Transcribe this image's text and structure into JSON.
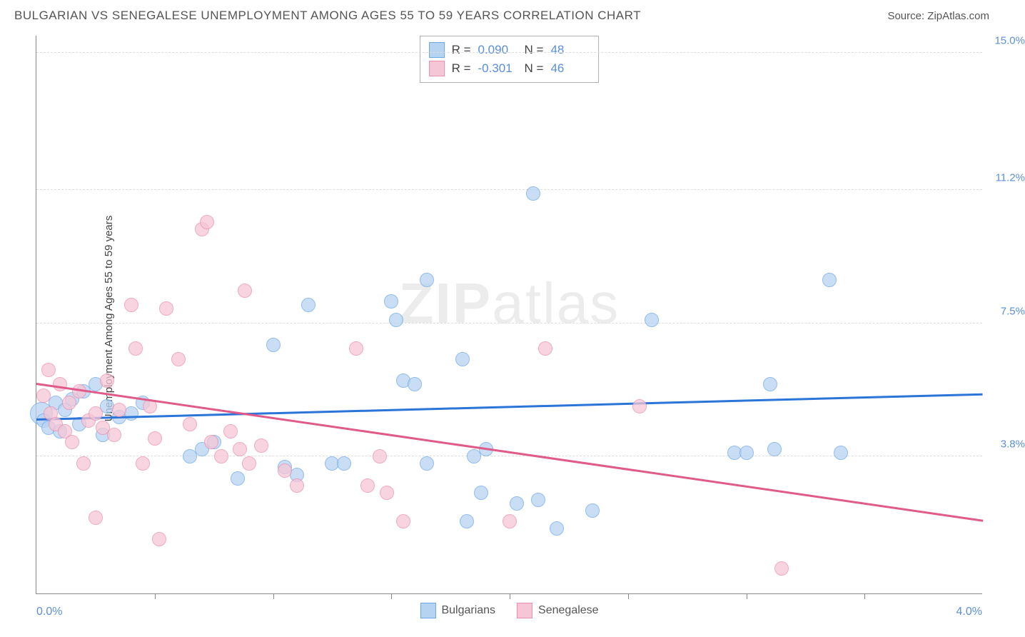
{
  "title": "BULGARIAN VS SENEGALESE UNEMPLOYMENT AMONG AGES 55 TO 59 YEARS CORRELATION CHART",
  "source": "Source: ZipAtlas.com",
  "watermark_a": "ZIP",
  "watermark_b": "atlas",
  "y_axis": {
    "label": "Unemployment Among Ages 55 to 59 years",
    "min": 0.0,
    "max": 15.5,
    "ticks": [
      {
        "value": 3.8,
        "label": "3.8%"
      },
      {
        "value": 7.5,
        "label": "7.5%"
      },
      {
        "value": 11.2,
        "label": "11.2%"
      },
      {
        "value": 15.0,
        "label": "15.0%"
      }
    ]
  },
  "x_axis": {
    "min": 0.0,
    "max": 4.0,
    "left_label": "0.0%",
    "right_label": "4.0%",
    "tick_positions": [
      0.5,
      1.0,
      1.5,
      2.0,
      2.5,
      3.0,
      3.5
    ]
  },
  "series": [
    {
      "name": "Bulgarians",
      "color_fill": "#b7d3f2",
      "color_stroke": "#6ea8e8",
      "trend_color": "#2b74d8",
      "r_label": "R =",
      "r_value": "0.090",
      "n_label": "N =",
      "n_value": "48",
      "trend": {
        "x1": 0.0,
        "y1": 4.8,
        "x2": 4.0,
        "y2": 5.5
      },
      "marker_radius": 10,
      "points": [
        {
          "x": 0.02,
          "y": 5.0,
          "r": 16
        },
        {
          "x": 0.03,
          "y": 4.8
        },
        {
          "x": 0.05,
          "y": 4.6
        },
        {
          "x": 0.08,
          "y": 5.3
        },
        {
          "x": 0.1,
          "y": 4.5
        },
        {
          "x": 0.12,
          "y": 5.1
        },
        {
          "x": 0.15,
          "y": 5.4
        },
        {
          "x": 0.18,
          "y": 4.7
        },
        {
          "x": 0.2,
          "y": 5.6
        },
        {
          "x": 0.25,
          "y": 5.8
        },
        {
          "x": 0.28,
          "y": 4.4
        },
        {
          "x": 0.3,
          "y": 5.2
        },
        {
          "x": 0.65,
          "y": 3.8
        },
        {
          "x": 0.7,
          "y": 4.0
        },
        {
          "x": 0.75,
          "y": 4.2
        },
        {
          "x": 0.85,
          "y": 3.2
        },
        {
          "x": 1.0,
          "y": 6.9
        },
        {
          "x": 1.05,
          "y": 3.5
        },
        {
          "x": 1.1,
          "y": 3.3
        },
        {
          "x": 1.15,
          "y": 8.0
        },
        {
          "x": 1.25,
          "y": 3.6
        },
        {
          "x": 1.3,
          "y": 3.6
        },
        {
          "x": 1.5,
          "y": 8.1
        },
        {
          "x": 1.55,
          "y": 5.9
        },
        {
          "x": 1.52,
          "y": 7.6
        },
        {
          "x": 1.6,
          "y": 5.8
        },
        {
          "x": 1.65,
          "y": 3.6
        },
        {
          "x": 1.8,
          "y": 6.5
        },
        {
          "x": 1.82,
          "y": 2.0
        },
        {
          "x": 1.88,
          "y": 2.8
        },
        {
          "x": 1.85,
          "y": 3.8
        },
        {
          "x": 1.9,
          "y": 4.0
        },
        {
          "x": 2.03,
          "y": 2.5
        },
        {
          "x": 2.1,
          "y": 11.1
        },
        {
          "x": 2.12,
          "y": 2.6
        },
        {
          "x": 2.2,
          "y": 1.8
        },
        {
          "x": 2.35,
          "y": 2.3
        },
        {
          "x": 2.6,
          "y": 7.6
        },
        {
          "x": 2.95,
          "y": 3.9
        },
        {
          "x": 3.0,
          "y": 3.9
        },
        {
          "x": 3.1,
          "y": 5.8
        },
        {
          "x": 3.12,
          "y": 4.0
        },
        {
          "x": 3.35,
          "y": 8.7
        },
        {
          "x": 3.4,
          "y": 3.9
        },
        {
          "x": 1.65,
          "y": 8.7
        },
        {
          "x": 0.35,
          "y": 4.9
        },
        {
          "x": 0.4,
          "y": 5.0
        },
        {
          "x": 0.45,
          "y": 5.3
        }
      ]
    },
    {
      "name": "Senegalese",
      "color_fill": "#f5c6d6",
      "color_stroke": "#eb8fb0",
      "trend_color": "#e05a8a",
      "r_label": "R =",
      "r_value": "-0.301",
      "n_label": "N =",
      "n_value": "46",
      "trend": {
        "x1": 0.0,
        "y1": 5.8,
        "x2": 4.0,
        "y2": 2.0
      },
      "marker_radius": 10,
      "points": [
        {
          "x": 0.03,
          "y": 5.5
        },
        {
          "x": 0.05,
          "y": 6.2
        },
        {
          "x": 0.06,
          "y": 5.0
        },
        {
          "x": 0.08,
          "y": 4.7
        },
        {
          "x": 0.1,
          "y": 5.8
        },
        {
          "x": 0.12,
          "y": 4.5
        },
        {
          "x": 0.14,
          "y": 5.3
        },
        {
          "x": 0.15,
          "y": 4.2
        },
        {
          "x": 0.18,
          "y": 5.6
        },
        {
          "x": 0.2,
          "y": 3.6
        },
        {
          "x": 0.22,
          "y": 4.8
        },
        {
          "x": 0.25,
          "y": 5.0
        },
        {
          "x": 0.28,
          "y": 4.6
        },
        {
          "x": 0.3,
          "y": 5.9
        },
        {
          "x": 0.33,
          "y": 4.4
        },
        {
          "x": 0.35,
          "y": 5.1
        },
        {
          "x": 0.25,
          "y": 2.1
        },
        {
          "x": 0.4,
          "y": 8.0
        },
        {
          "x": 0.42,
          "y": 6.8
        },
        {
          "x": 0.45,
          "y": 3.6
        },
        {
          "x": 0.48,
          "y": 5.2
        },
        {
          "x": 0.5,
          "y": 4.3
        },
        {
          "x": 0.52,
          "y": 1.5
        },
        {
          "x": 0.55,
          "y": 7.9
        },
        {
          "x": 0.6,
          "y": 6.5
        },
        {
          "x": 0.65,
          "y": 4.7
        },
        {
          "x": 0.7,
          "y": 10.1
        },
        {
          "x": 0.72,
          "y": 10.3
        },
        {
          "x": 0.74,
          "y": 4.2
        },
        {
          "x": 0.78,
          "y": 3.8
        },
        {
          "x": 0.82,
          "y": 4.5
        },
        {
          "x": 0.86,
          "y": 4.0
        },
        {
          "x": 0.88,
          "y": 8.4
        },
        {
          "x": 0.9,
          "y": 3.6
        },
        {
          "x": 0.95,
          "y": 4.1
        },
        {
          "x": 1.05,
          "y": 3.4
        },
        {
          "x": 1.1,
          "y": 3.0
        },
        {
          "x": 1.35,
          "y": 6.8
        },
        {
          "x": 1.4,
          "y": 3.0
        },
        {
          "x": 1.45,
          "y": 3.8
        },
        {
          "x": 1.48,
          "y": 2.8
        },
        {
          "x": 1.55,
          "y": 2.0
        },
        {
          "x": 2.15,
          "y": 6.8
        },
        {
          "x": 2.55,
          "y": 5.2
        },
        {
          "x": 3.15,
          "y": 0.7
        },
        {
          "x": 2.0,
          "y": 2.0
        }
      ]
    }
  ],
  "colors": {
    "axis": "#888888",
    "grid": "#dddddd",
    "tick_text": "#5b8fd6",
    "title_text": "#555555",
    "background": "#ffffff"
  }
}
